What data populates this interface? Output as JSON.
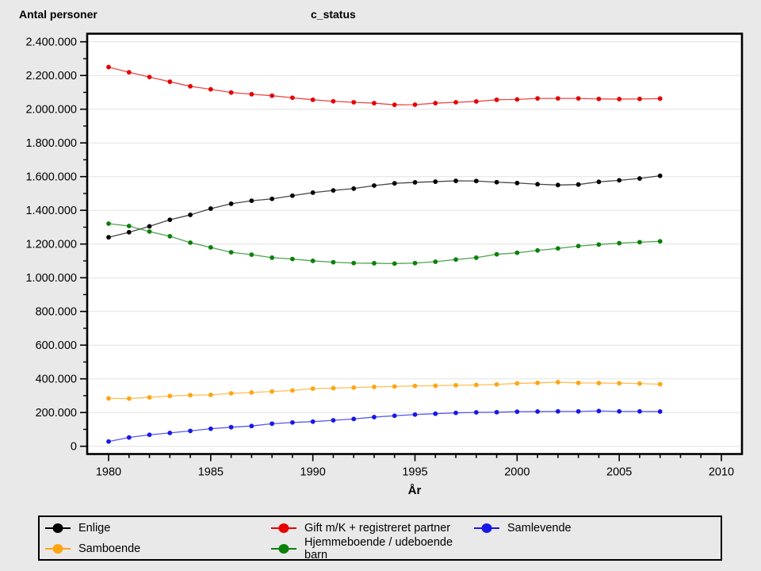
{
  "header": {
    "y_axis_title": "Antal personer",
    "plot_title": "c_status"
  },
  "x_axis": {
    "label": "År",
    "major_ticks": [
      1980,
      1985,
      1990,
      1995,
      2000,
      2005,
      2010
    ],
    "minor_tick_step_years": 1,
    "range": [
      1980,
      2010
    ]
  },
  "y_axis": {
    "tick_values": [
      0,
      200000,
      400000,
      600000,
      800000,
      1000000,
      1200000,
      1400000,
      1600000,
      1800000,
      2000000,
      2200000,
      2400000
    ],
    "tick_labels": [
      "0",
      "200.000",
      "400.000",
      "600.000",
      "800.000",
      "1.000.000",
      "1.200.000",
      "1.400.000",
      "1.600.000",
      "1.800.000",
      "2.000.000",
      "2.200.000",
      "2.400.000"
    ],
    "minor_tick_step": 100000,
    "range": [
      0,
      2400000
    ]
  },
  "chart_data": {
    "type": "line",
    "title": "c_status",
    "xlabel": "År",
    "ylabel": "Antal personer",
    "xlim": [
      1979,
      2011
    ],
    "ylim": [
      0,
      2400000
    ],
    "grid": "horizontal gridlines at every 200.000",
    "legend_position": "boxed legend below plot, 3 columns x 2 rows",
    "x": [
      1980,
      1981,
      1982,
      1983,
      1984,
      1985,
      1986,
      1987,
      1988,
      1989,
      1990,
      1991,
      1992,
      1993,
      1994,
      1995,
      1996,
      1997,
      1998,
      1999,
      2000,
      2001,
      2002,
      2003,
      2004,
      2005,
      2006,
      2007
    ],
    "series": [
      {
        "name": "Enlige",
        "color": "#000000",
        "values": [
          1240000,
          1270000,
          1305000,
          1344000,
          1373000,
          1410000,
          1439000,
          1457000,
          1468000,
          1487000,
          1505000,
          1518000,
          1529000,
          1547000,
          1560000,
          1566000,
          1570000,
          1575000,
          1574000,
          1567000,
          1562000,
          1555000,
          1550000,
          1553000,
          1569000,
          1578000,
          1589000,
          1605000
        ]
      },
      {
        "name": "Gift m/K + registreret partner",
        "color": "#e60000",
        "values": [
          2250000,
          2219000,
          2191000,
          2163000,
          2136000,
          2118000,
          2099000,
          2089000,
          2080000,
          2068000,
          2056000,
          2047000,
          2041000,
          2036000,
          2026000,
          2027000,
          2036000,
          2041000,
          2046000,
          2056000,
          2058000,
          2064000,
          2064000,
          2064000,
          2061000,
          2060000,
          2061000,
          2063000
        ]
      },
      {
        "name": "Samlevende",
        "color": "#1717e8",
        "values": [
          28000,
          52000,
          68000,
          79000,
          91000,
          104000,
          113000,
          120000,
          134000,
          141000,
          146000,
          154000,
          162000,
          173000,
          181000,
          188000,
          193000,
          198000,
          201000,
          202000,
          205000,
          206000,
          207000,
          207000,
          209000,
          207000,
          207000,
          206000
        ]
      },
      {
        "name": "Samboende",
        "color": "#ffa512",
        "values": [
          284000,
          283000,
          290000,
          298000,
          303000,
          305000,
          314000,
          319000,
          325000,
          331000,
          342000,
          345000,
          348000,
          352000,
          355000,
          358000,
          359000,
          362000,
          364000,
          367000,
          373000,
          376000,
          380000,
          376000,
          375000,
          374000,
          372000,
          368000
        ]
      },
      {
        "name": "Hjemmeboende / udeboende barn",
        "color": "#0a800a",
        "values": [
          1321000,
          1307000,
          1274000,
          1246000,
          1208000,
          1180000,
          1151000,
          1137000,
          1119000,
          1111000,
          1100000,
          1092000,
          1087000,
          1086000,
          1084000,
          1087000,
          1095000,
          1108000,
          1119000,
          1139000,
          1148000,
          1162000,
          1174000,
          1188000,
          1197000,
          1205000,
          1211000,
          1216000
        ]
      }
    ]
  },
  "style": {
    "plot_background": "#ffffff",
    "page_background": "#e9e9e9",
    "gridline_color": "#e2e2e2",
    "frame_color": "#000000"
  }
}
